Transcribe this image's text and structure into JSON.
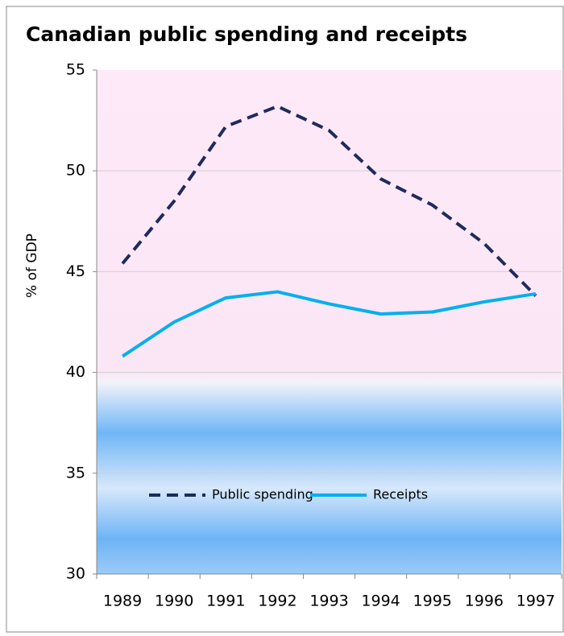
{
  "chart_data": {
    "type": "line",
    "title": "Canadian public spending and receipts",
    "y_label": "% of GDP",
    "categories": [
      "1989",
      "1990",
      "1991",
      "1992",
      "1993",
      "1994",
      "1995",
      "1996",
      "1997"
    ],
    "series": [
      {
        "name": "Public spending",
        "color": "#1f2a5c",
        "line_style": "dashed",
        "values": [
          45.4,
          48.5,
          52.2,
          53.2,
          52.0,
          49.6,
          48.3,
          46.4,
          43.8
        ]
      },
      {
        "name": "Receipts",
        "color": "#00b0f0",
        "line_style": "solid",
        "values": [
          40.8,
          42.5,
          43.7,
          44.0,
          43.4,
          42.9,
          43.0,
          43.5,
          43.9
        ]
      }
    ],
    "ylim": [
      30,
      55
    ],
    "yticks": [
      30,
      35,
      40,
      45,
      50,
      55
    ],
    "grid": true
  }
}
